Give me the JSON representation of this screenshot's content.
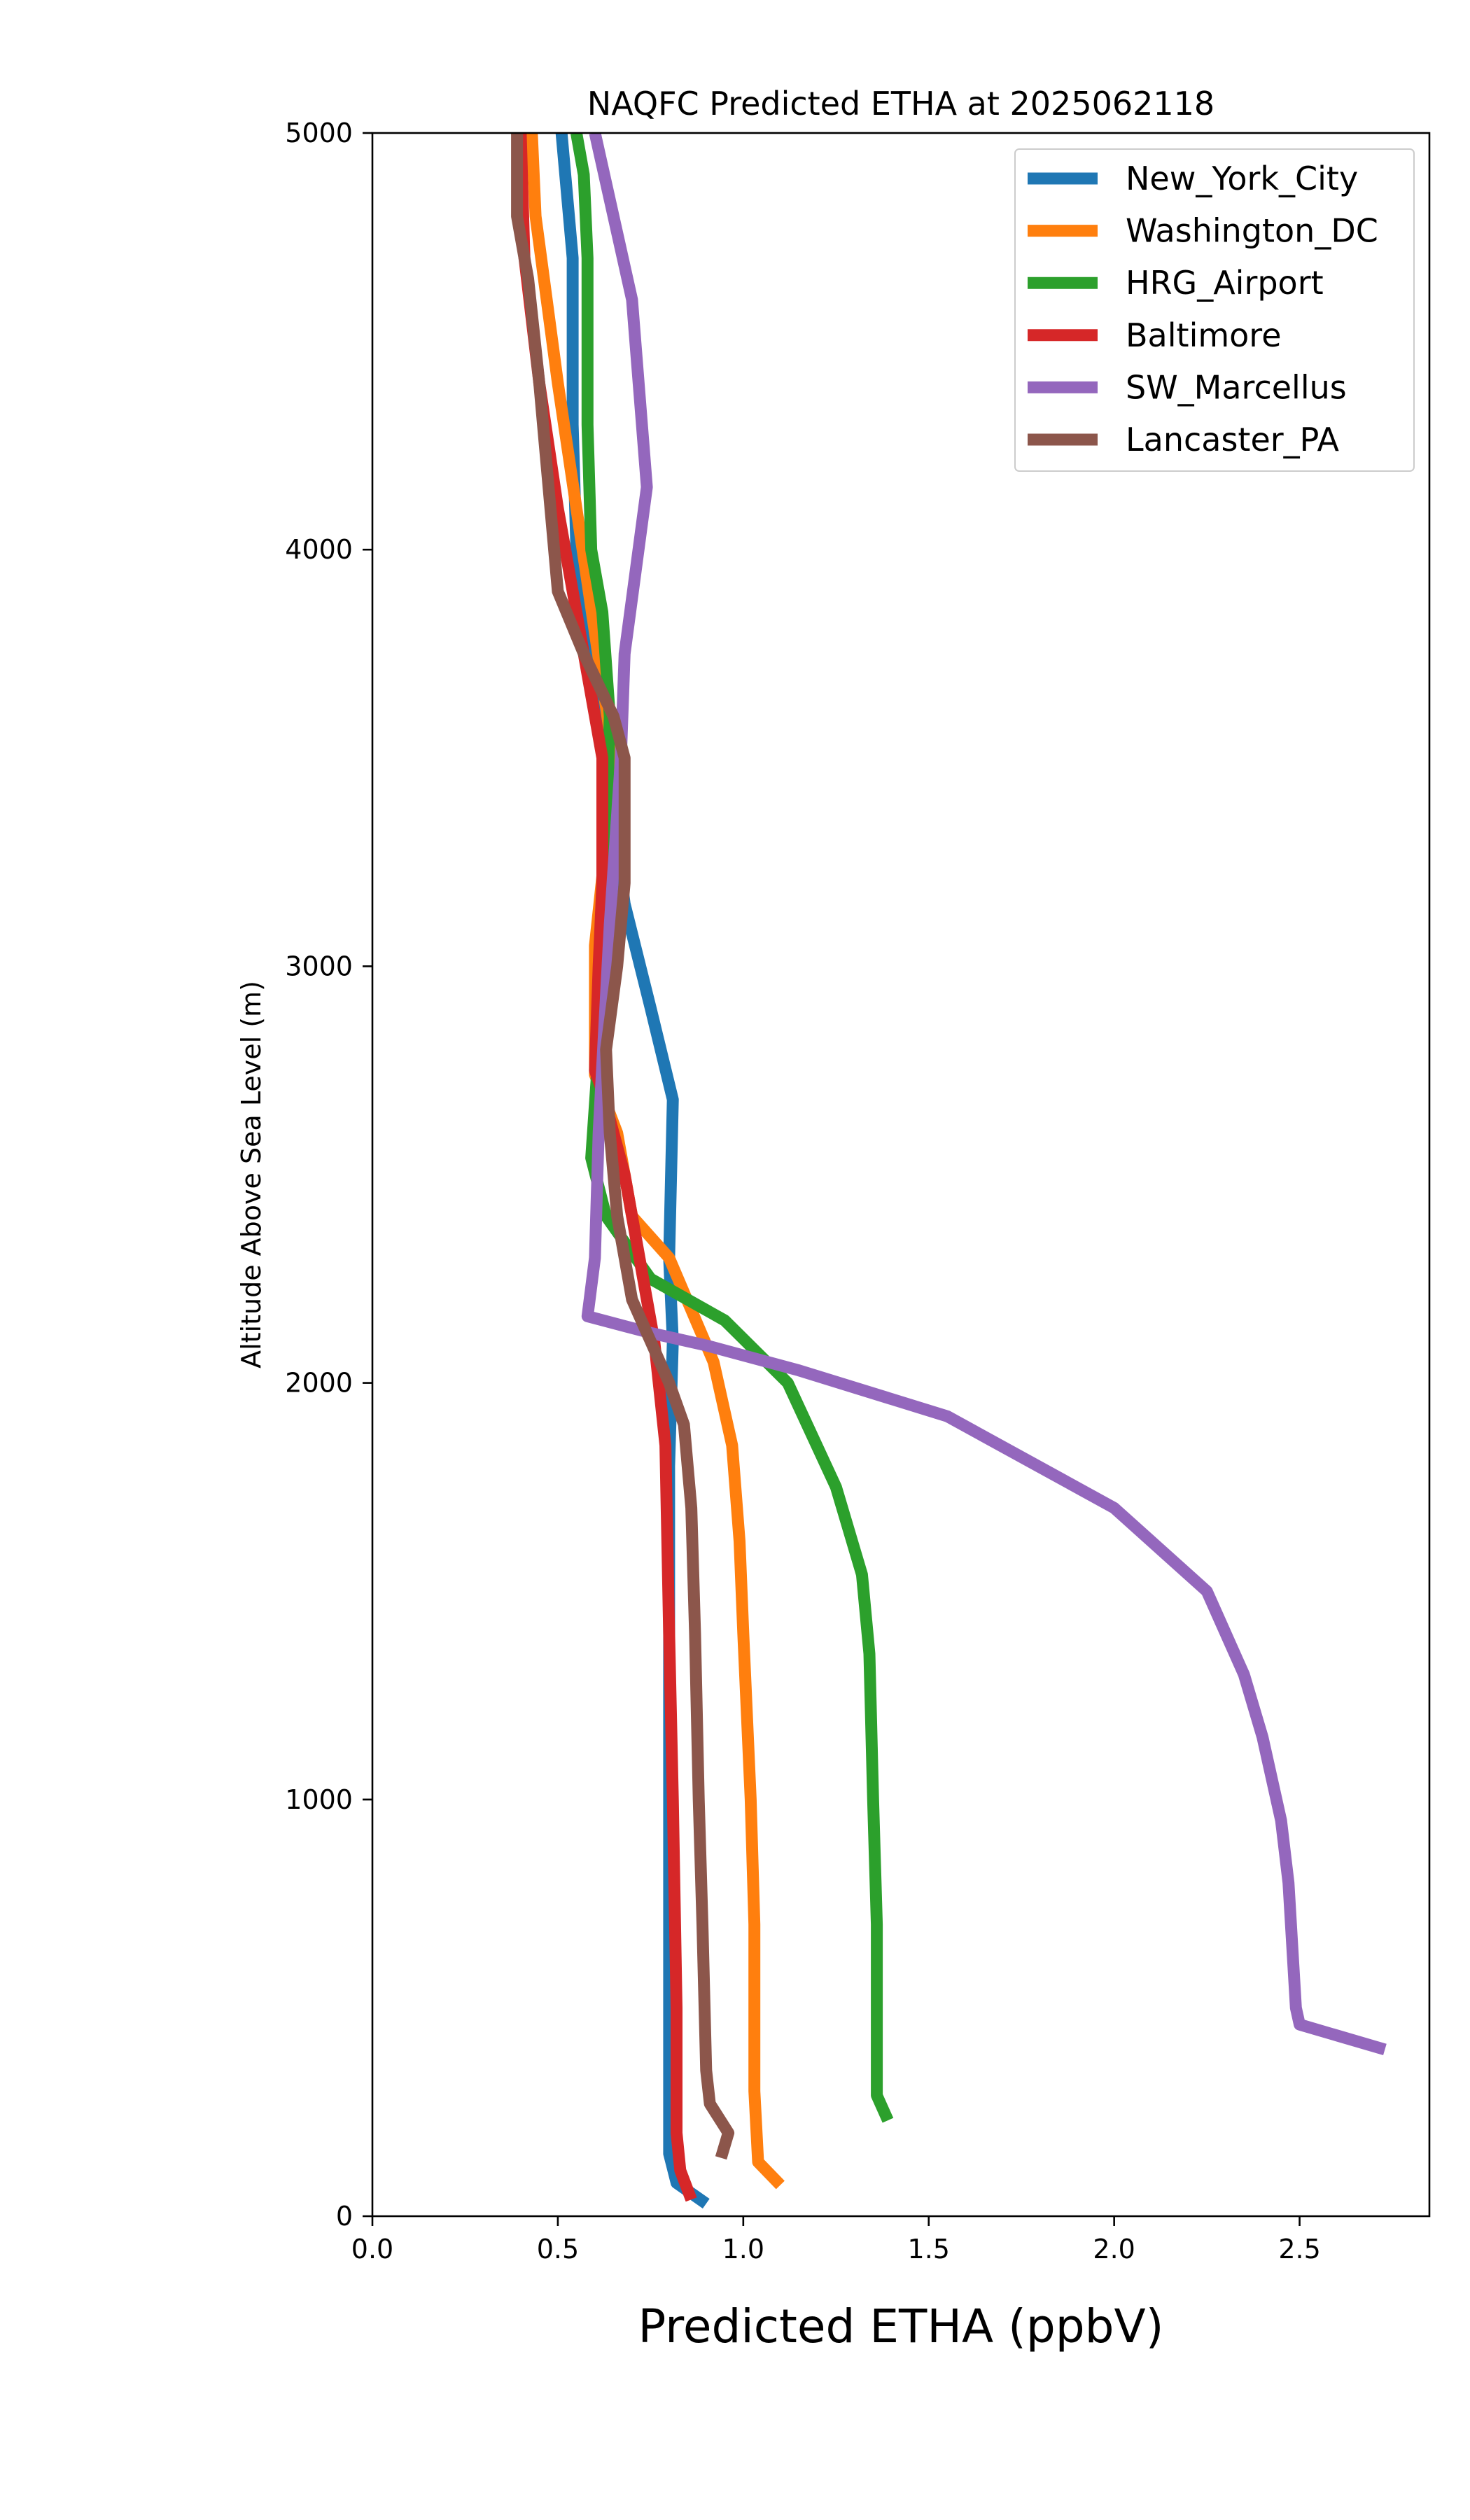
{
  "chart_data": {
    "type": "line",
    "title": "NAQFC Predicted ETHA at 2025062118",
    "xlabel": "Predicted ETHA (ppbV)",
    "ylabel": "Altitude Above Sea Level (m)",
    "xlim": [
      0,
      2.85
    ],
    "ylim": [
      0,
      5000
    ],
    "xticks": [
      "0.0",
      "0.5",
      "1.0",
      "1.5",
      "2.0",
      "2.5"
    ],
    "xtick_values": [
      0,
      0.5,
      1.0,
      1.5,
      2.0,
      2.5
    ],
    "yticks": [
      "0",
      "1000",
      "2000",
      "3000",
      "4000",
      "5000"
    ],
    "ytick_values": [
      0,
      1000,
      2000,
      3000,
      4000,
      5000
    ],
    "grid": false,
    "legend_position": "top-right",
    "series": [
      {
        "name": "New_York_City",
        "color": "#1f77b4",
        "points": [
          [
            0.9,
            30
          ],
          [
            0.82,
            80
          ],
          [
            0.8,
            150
          ],
          [
            0.8,
            300
          ],
          [
            0.8,
            700
          ],
          [
            0.8,
            1000
          ],
          [
            0.8,
            1400
          ],
          [
            0.8,
            1800
          ],
          [
            0.81,
            2100
          ],
          [
            0.8,
            2300
          ],
          [
            0.81,
            2680
          ],
          [
            0.75,
            2900
          ],
          [
            0.68,
            3150
          ],
          [
            0.63,
            3500
          ],
          [
            0.59,
            3800
          ],
          [
            0.55,
            4000
          ],
          [
            0.54,
            4300
          ],
          [
            0.54,
            4700
          ],
          [
            0.51,
            5000
          ]
        ]
      },
      {
        "name": "Washington_DC",
        "color": "#ff7f0e",
        "points": [
          [
            1.1,
            75
          ],
          [
            1.04,
            130
          ],
          [
            1.03,
            300
          ],
          [
            1.03,
            700
          ],
          [
            1.02,
            1000
          ],
          [
            1.0,
            1400
          ],
          [
            0.99,
            1620
          ],
          [
            0.97,
            1850
          ],
          [
            0.92,
            2050
          ],
          [
            0.8,
            2300
          ],
          [
            0.7,
            2400
          ],
          [
            0.66,
            2600
          ],
          [
            0.6,
            2740
          ],
          [
            0.6,
            3050
          ],
          [
            0.63,
            3300
          ],
          [
            0.65,
            3500
          ],
          [
            0.6,
            3800
          ],
          [
            0.55,
            4100
          ],
          [
            0.5,
            4400
          ],
          [
            0.44,
            4800
          ],
          [
            0.43,
            5000
          ]
        ]
      },
      {
        "name": "HRG_Airport",
        "color": "#2ca02c",
        "points": [
          [
            1.39,
            230
          ],
          [
            1.36,
            290
          ],
          [
            1.36,
            700
          ],
          [
            1.35,
            1000
          ],
          [
            1.34,
            1350
          ],
          [
            1.32,
            1540
          ],
          [
            1.25,
            1750
          ],
          [
            1.12,
            2000
          ],
          [
            0.95,
            2150
          ],
          [
            0.75,
            2250
          ],
          [
            0.63,
            2400
          ],
          [
            0.59,
            2540
          ],
          [
            0.61,
            2800
          ],
          [
            0.63,
            3000
          ],
          [
            0.63,
            3300
          ],
          [
            0.64,
            3600
          ],
          [
            0.62,
            3850
          ],
          [
            0.59,
            4000
          ],
          [
            0.58,
            4300
          ],
          [
            0.58,
            4700
          ],
          [
            0.57,
            4900
          ],
          [
            0.55,
            5000
          ]
        ]
      },
      {
        "name": "Baltimore",
        "color": "#d62728",
        "points": [
          [
            0.86,
            40
          ],
          [
            0.83,
            110
          ],
          [
            0.82,
            200
          ],
          [
            0.82,
            500
          ],
          [
            0.81,
            1000
          ],
          [
            0.8,
            1400
          ],
          [
            0.79,
            1850
          ],
          [
            0.76,
            2100
          ],
          [
            0.72,
            2300
          ],
          [
            0.68,
            2500
          ],
          [
            0.62,
            2700
          ],
          [
            0.6,
            2750
          ],
          [
            0.61,
            3000
          ],
          [
            0.62,
            3200
          ],
          [
            0.62,
            3500
          ],
          [
            0.56,
            3800
          ],
          [
            0.5,
            4100
          ],
          [
            0.45,
            4400
          ],
          [
            0.41,
            4700
          ],
          [
            0.4,
            5000
          ]
        ]
      },
      {
        "name": "SW_Marcellus",
        "color": "#9467bd",
        "points": [
          [
            2.73,
            400
          ],
          [
            2.5,
            460
          ],
          [
            2.49,
            500
          ],
          [
            2.47,
            800
          ],
          [
            2.45,
            950
          ],
          [
            2.4,
            1150
          ],
          [
            2.35,
            1300
          ],
          [
            2.25,
            1500
          ],
          [
            2.0,
            1700
          ],
          [
            1.55,
            1920
          ],
          [
            1.15,
            2030
          ],
          [
            0.9,
            2090
          ],
          [
            0.75,
            2120
          ],
          [
            0.58,
            2160
          ],
          [
            0.6,
            2300
          ],
          [
            0.61,
            2600
          ],
          [
            0.64,
            3100
          ],
          [
            0.67,
            3500
          ],
          [
            0.68,
            3750
          ],
          [
            0.74,
            4150
          ],
          [
            0.7,
            4600
          ],
          [
            0.6,
            5000
          ]
        ]
      },
      {
        "name": "Lancaster_PA",
        "color": "#8c564b",
        "points": [
          [
            0.94,
            140
          ],
          [
            0.96,
            200
          ],
          [
            0.91,
            270
          ],
          [
            0.9,
            350
          ],
          [
            0.89,
            700
          ],
          [
            0.88,
            1000
          ],
          [
            0.87,
            1400
          ],
          [
            0.86,
            1700
          ],
          [
            0.84,
            1900
          ],
          [
            0.8,
            2000
          ],
          [
            0.75,
            2100
          ],
          [
            0.7,
            2200
          ],
          [
            0.66,
            2400
          ],
          [
            0.64,
            2600
          ],
          [
            0.63,
            2800
          ],
          [
            0.66,
            3000
          ],
          [
            0.68,
            3200
          ],
          [
            0.68,
            3500
          ],
          [
            0.65,
            3600
          ],
          [
            0.57,
            3750
          ],
          [
            0.5,
            3900
          ],
          [
            0.48,
            4100
          ],
          [
            0.45,
            4400
          ],
          [
            0.42,
            4650
          ],
          [
            0.39,
            4800
          ],
          [
            0.39,
            5000
          ]
        ]
      }
    ]
  }
}
